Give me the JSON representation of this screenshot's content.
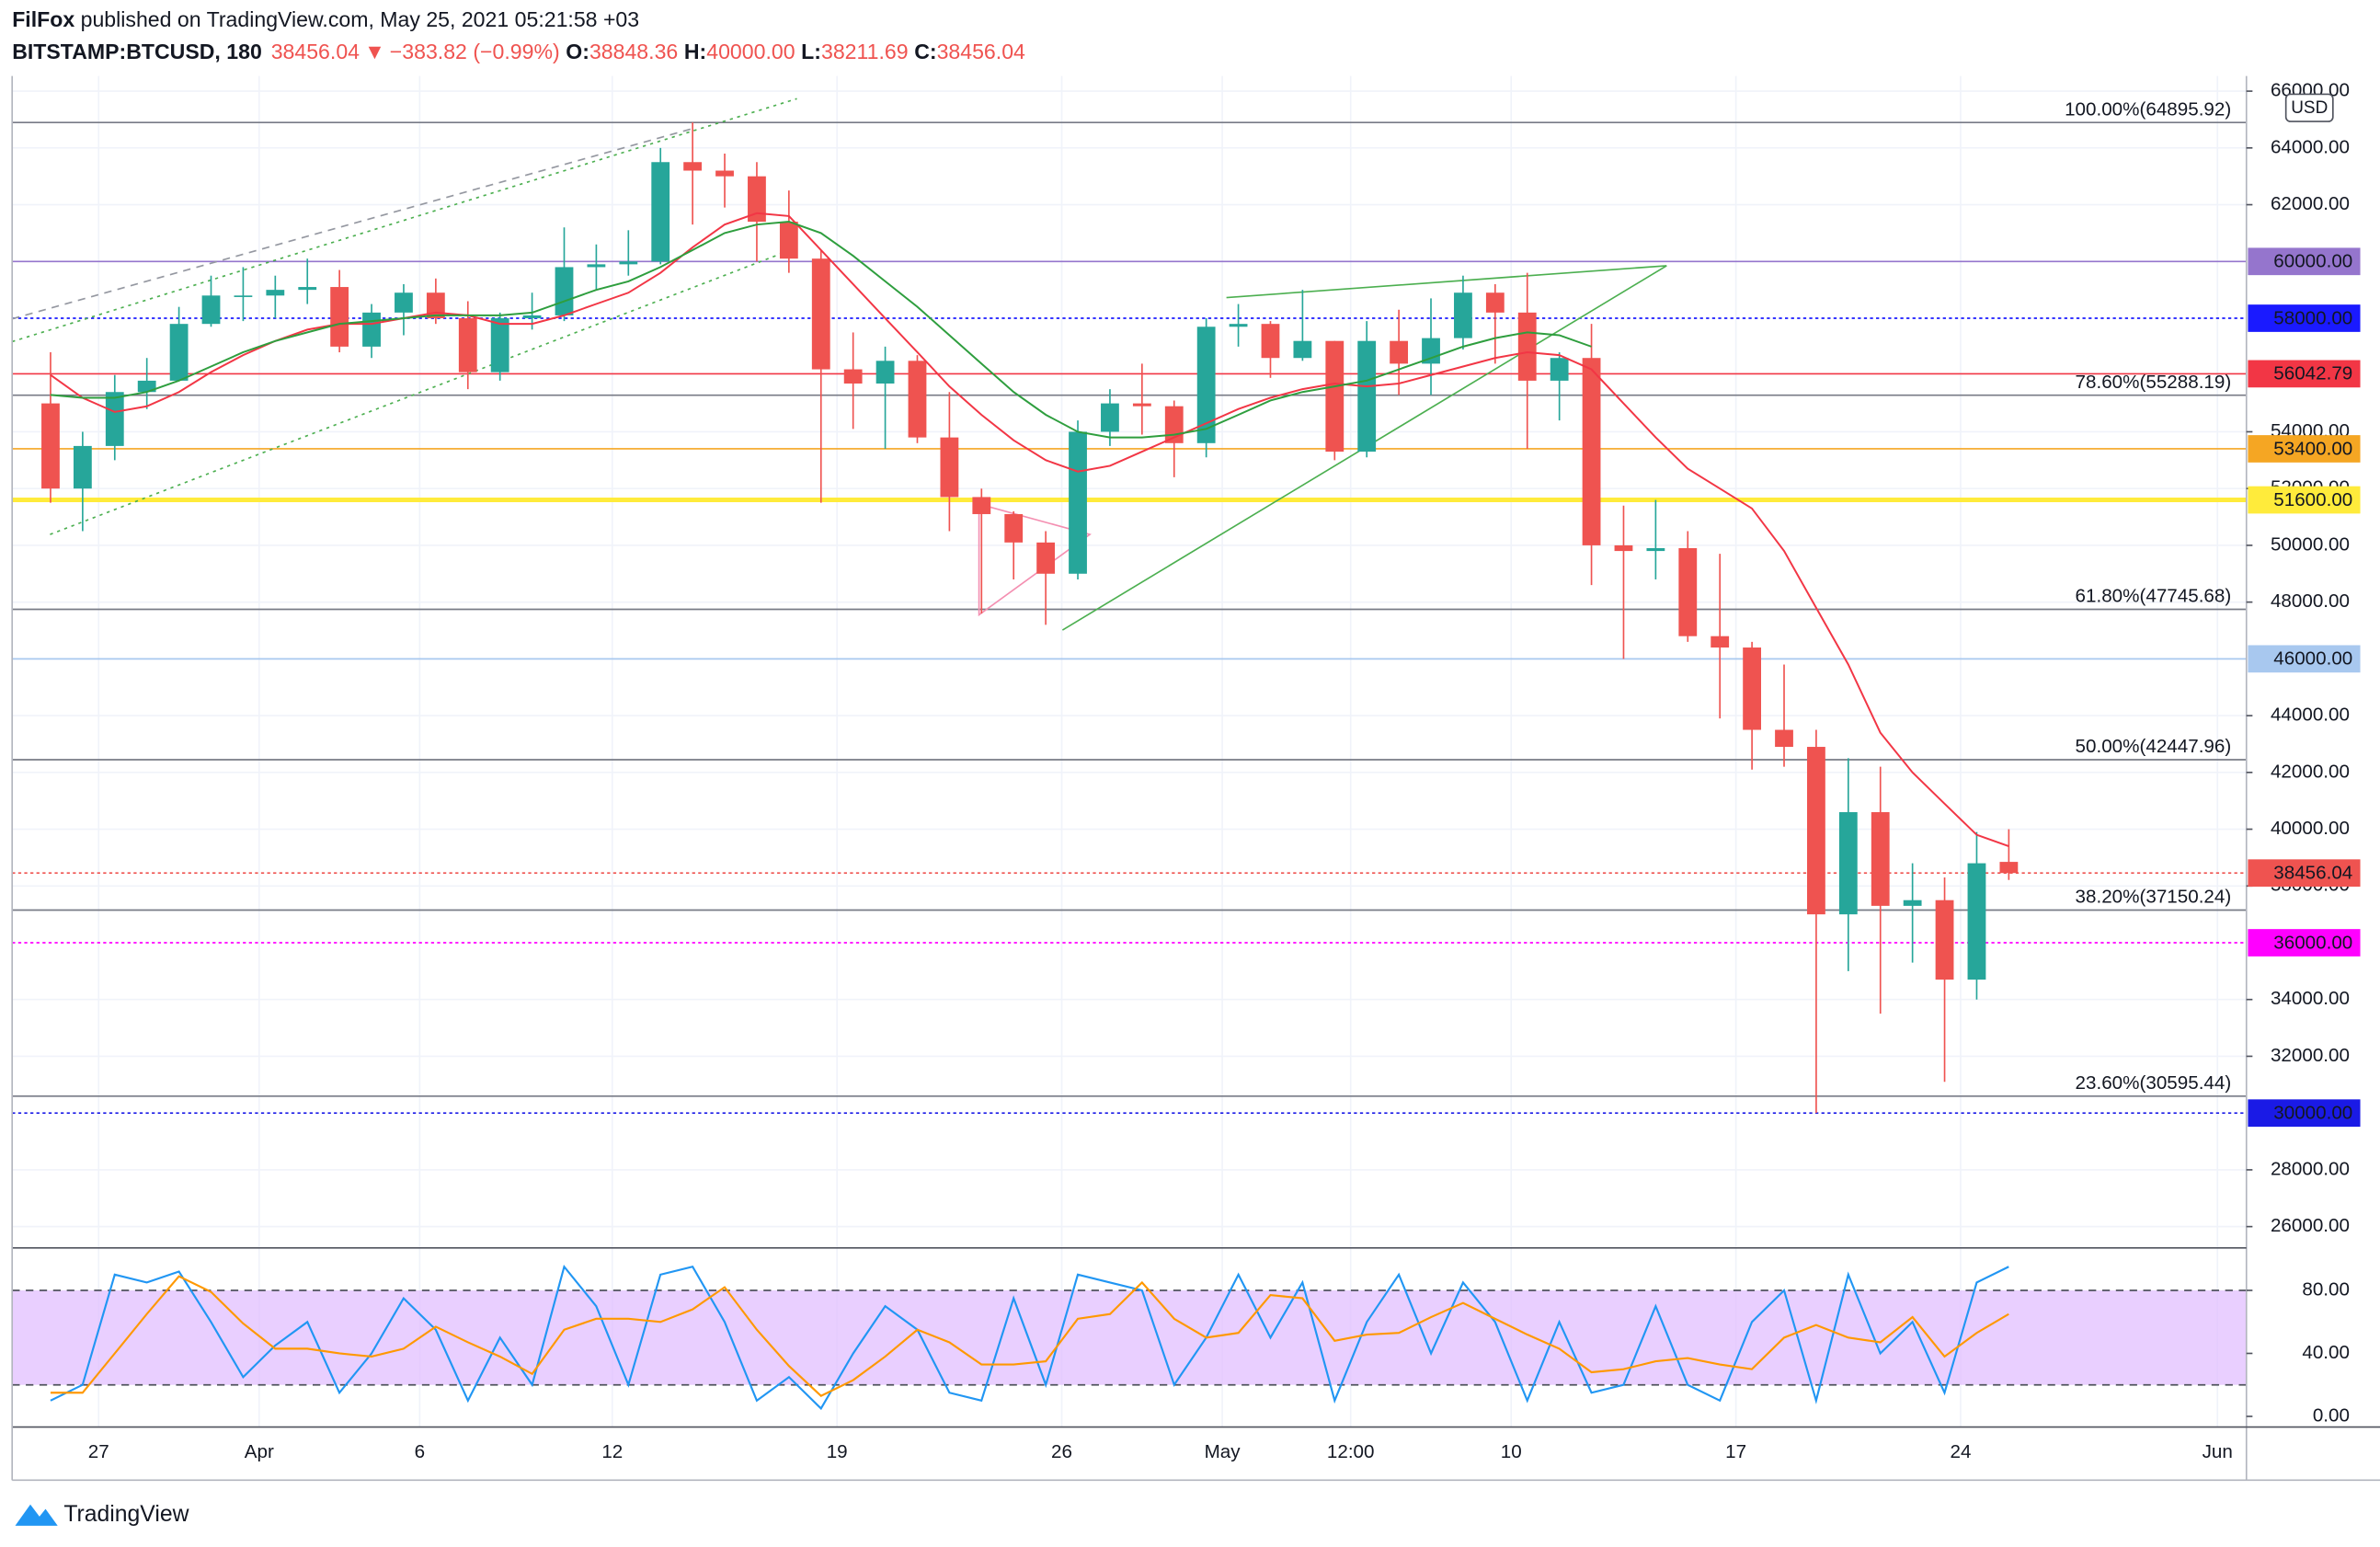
{
  "header": {
    "author": "FilFox",
    "published": " published on TradingView.com, May 25, 2021 05:21:58 +03",
    "symbol": "BITSTAMP:BTCUSD, 180",
    "last": "38456.04",
    "arrow": "▼",
    "change": "−383.82 (−0.99%)",
    "o_label": "O:",
    "o": "38848.36",
    "h_label": "H:",
    "h": "40000.00",
    "l_label": "L:",
    "l": "38211.69",
    "c_label": "C:",
    "c": "38456.04",
    "currency": "USD",
    "brand": "TradingView"
  },
  "chart_data": [
    {
      "type": "candlestick",
      "up_color": "#26a69a",
      "down_color": "#ef5350",
      "categories": [
        null,
        null,
        "27",
        null,
        null,
        null,
        null,
        "Apr",
        null,
        null,
        null,
        null,
        "6",
        null,
        null,
        null,
        null,
        null,
        "12",
        null,
        null,
        null,
        null,
        null,
        null,
        "19",
        null,
        null,
        null,
        null,
        null,
        null,
        "26",
        null,
        null,
        null,
        null,
        "May",
        null,
        null,
        null,
        "12:00",
        null,
        null,
        null,
        null,
        "10",
        null,
        null,
        null,
        null,
        null,
        null,
        "17",
        null,
        null,
        null,
        null,
        null,
        null,
        "24",
        null,
        null,
        null,
        null,
        null,
        null,
        null,
        "Jun"
      ],
      "open": [
        55000,
        52000,
        53500,
        55400,
        55800,
        57800,
        58800,
        58800,
        59000,
        59100,
        57000,
        58200,
        58900,
        58000,
        56100,
        58000,
        58100,
        59800,
        59900,
        60000,
        63500,
        63200,
        63000,
        61400,
        60100,
        56200,
        55700,
        56500,
        53800,
        51700,
        51100,
        50100,
        49000,
        54000,
        55000,
        54900,
        53600,
        57700,
        57800,
        56600,
        57200,
        53300,
        57200,
        56400,
        57300,
        58900,
        58200,
        55800,
        56600,
        50000,
        49800,
        49900,
        46800,
        46400,
        43500,
        42900,
        37000,
        40600,
        37300,
        37500,
        34700,
        38848.36,
        null,
        null,
        null,
        null,
        null,
        null,
        null
      ],
      "high": [
        56800,
        54000,
        56000,
        56600,
        58400,
        59500,
        59800,
        59500,
        60100,
        59700,
        58500,
        59200,
        59400,
        58600,
        58200,
        58900,
        61200,
        60600,
        61100,
        64000,
        64895.92,
        63800,
        63500,
        62500,
        60400,
        57500,
        57000,
        56700,
        55400,
        52000,
        51200,
        50500,
        54400,
        55500,
        56400,
        55100,
        58000,
        58500,
        57900,
        59000,
        57200,
        57900,
        58300,
        58700,
        59500,
        59200,
        59600,
        56800,
        57800,
        51400,
        51600,
        50500,
        49700,
        46600,
        45800,
        43500,
        42500,
        42200,
        38800,
        38300,
        39900,
        40000,
        null,
        null,
        null,
        null,
        null,
        null,
        null
      ],
      "low": [
        51500,
        50500,
        53000,
        54800,
        55800,
        57700,
        57900,
        58000,
        58500,
        56800,
        56600,
        57400,
        57800,
        55500,
        55800,
        57600,
        57900,
        59000,
        59500,
        59900,
        61300,
        61900,
        60000,
        59600,
        51500,
        54100,
        53400,
        53600,
        50500,
        47600,
        48800,
        47200,
        48800,
        53500,
        53900,
        52400,
        53100,
        57000,
        55900,
        56500,
        53000,
        53100,
        55300,
        55300,
        56900,
        56400,
        53400,
        54400,
        48600,
        46000,
        48800,
        46600,
        43900,
        42100,
        42200,
        30000,
        35000,
        33500,
        35300,
        31100,
        34000,
        38211.69,
        null,
        null,
        null,
        null,
        null,
        null,
        null
      ],
      "close": [
        52000,
        53500,
        55400,
        55800,
        57800,
        58800,
        58800,
        59000,
        59100,
        57000,
        58200,
        58900,
        58000,
        56100,
        58000,
        58100,
        59800,
        59900,
        60000,
        63500,
        63200,
        63000,
        61400,
        60100,
        56200,
        55700,
        56500,
        53800,
        51700,
        51100,
        50100,
        49000,
        54000,
        55000,
        54900,
        53600,
        57700,
        57800,
        56600,
        57200,
        53300,
        57200,
        56400,
        57300,
        58900,
        58200,
        55800,
        56600,
        50000,
        49800,
        49900,
        46800,
        46400,
        43500,
        42900,
        37000,
        40600,
        37300,
        37500,
        34700,
        38800,
        38456.04,
        null,
        null,
        null,
        null,
        null,
        null,
        null
      ],
      "series": [
        {
          "color": "#f23645",
          "values": [
            56000,
            55200,
            54700,
            54900,
            55400,
            56100,
            56700,
            57200,
            57600,
            57800,
            57800,
            58000,
            58200,
            58100,
            57800,
            57800,
            58100,
            58500,
            58900,
            59600,
            60500,
            61300,
            61700,
            61600,
            60400,
            59200,
            58000,
            56800,
            55600,
            54600,
            53700,
            53000,
            52600,
            52800,
            53300,
            53800,
            54300,
            54800,
            55200,
            55500,
            55700,
            55600,
            55700,
            56000,
            56300,
            56600,
            56800,
            56700,
            56200,
            55000,
            53800,
            52700,
            52000,
            51300,
            49800,
            47800,
            45800,
            43400,
            42000,
            40900,
            39800,
            39400,
            null,
            null,
            null,
            null,
            null,
            null,
            null
          ]
        },
        {
          "color": "#2e9e3e",
          "values": [
            55300,
            55200,
            55200,
            55400,
            55800,
            56300,
            56800,
            57200,
            57500,
            57800,
            57900,
            58000,
            58100,
            58100,
            58100,
            58200,
            58600,
            59000,
            59300,
            59800,
            60400,
            61000,
            61300,
            61400,
            61000,
            60200,
            59300,
            58400,
            57400,
            56400,
            55400,
            54600,
            54000,
            53800,
            53800,
            53900,
            54100,
            54600,
            55100,
            55400,
            55600,
            55800,
            56200,
            56600,
            57000,
            57300,
            57500,
            57400,
            57000,
            null,
            null,
            null,
            null,
            null,
            null,
            null,
            null,
            null,
            null,
            null,
            null,
            null,
            null,
            null,
            null,
            null,
            null,
            null,
            null
          ]
        }
      ],
      "ylim": [
        25250,
        66535
      ],
      "yticks": [
        {
          "value": 26000,
          "label": "26000.00"
        },
        {
          "value": 28000,
          "label": "28000.00"
        },
        {
          "value": 32000,
          "label": "32000.00"
        },
        {
          "value": 34000,
          "label": "34000.00"
        },
        {
          "value": 38000,
          "label": "38000.00"
        },
        {
          "value": 40000,
          "label": "40000.00"
        },
        {
          "value": 42000,
          "label": "42000.00"
        },
        {
          "value": 44000,
          "label": "44000.00"
        },
        {
          "value": 48000,
          "label": "48000.00"
        },
        {
          "value": 50000,
          "label": "50000.00"
        },
        {
          "value": 52000,
          "label": "52000.00"
        },
        {
          "value": 54000,
          "label": "54000.00"
        },
        {
          "value": 62000,
          "label": "62000.00"
        },
        {
          "value": 64000,
          "label": "64000.00"
        },
        {
          "value": 66000,
          "label": "66000.00"
        }
      ],
      "grid": true,
      "fib_color": "#787b86",
      "fib_levels": [
        {
          "value": 64895.92,
          "label": "100.00%(64895.92)"
        },
        {
          "value": 55288.19,
          "label": "78.60%(55288.19)"
        },
        {
          "value": 47745.68,
          "label": "61.80%(47745.68)"
        },
        {
          "value": 42447.96,
          "label": "50.00%(42447.96)"
        },
        {
          "value": 37150.24,
          "label": "38.20%(37150.24)"
        },
        {
          "value": 30595.44,
          "label": "23.60%(30595.44)"
        }
      ],
      "levels": [
        {
          "value": 60000,
          "label": "60000.00",
          "color": "#9575cd",
          "text_color": "#131722",
          "style": "solid"
        },
        {
          "value": 58000,
          "label": "58000.00",
          "color": "#1a1aff",
          "text_color": "#ffffff",
          "style": "dotted"
        },
        {
          "value": 56042.79,
          "label": "56042.79",
          "color": "#f23645",
          "text_color": "#ffffff",
          "style": "solid"
        },
        {
          "value": 53400,
          "label": "53400.00",
          "color": "#f5a623",
          "text_color": "#131722",
          "style": "solid"
        },
        {
          "value": 51600,
          "label": "51600.00",
          "color": "#ffeb3b",
          "text_color": "#131722",
          "style": "thick"
        },
        {
          "value": 46000,
          "label": "46000.00",
          "color": "#a8c8ef",
          "text_color": "#131722",
          "style": "solid"
        },
        {
          "value": 38456.04,
          "label": "38456.04",
          "color": "#ef5350",
          "text_color": "#ffffff",
          "style": "dotted"
        },
        {
          "value": 36000,
          "label": "36000.00",
          "color": "#ff00ff",
          "text_color": "#ffffff",
          "style": "dotted"
        },
        {
          "value": 30000,
          "label": "30000.00",
          "color": "#1a1ae6",
          "text_color": "#ffffff",
          "style": "dotted"
        }
      ]
    },
    {
      "type": "line",
      "series": [
        {
          "color": "#2196f3",
          "values": [
            10,
            20,
            90,
            85,
            92,
            60,
            25,
            45,
            60,
            15,
            40,
            75,
            55,
            10,
            50,
            20,
            95,
            70,
            20,
            90,
            95,
            60,
            10,
            25,
            5,
            40,
            70,
            55,
            15,
            10,
            75,
            20,
            90,
            85,
            80,
            20,
            50,
            90,
            50,
            85,
            10,
            60,
            90,
            40,
            85,
            60,
            10,
            60,
            15,
            20,
            70,
            20,
            10,
            60,
            80,
            10,
            90,
            40,
            60,
            15,
            85,
            95,
            null,
            null,
            null,
            null,
            null,
            null,
            null
          ]
        },
        {
          "color": "#ff9800",
          "values": [
            15,
            15,
            40,
            65,
            89,
            79,
            59,
            43,
            43,
            40,
            38,
            43,
            57,
            47,
            38,
            27,
            55,
            62,
            62,
            60,
            68,
            82,
            55,
            32,
            13,
            23,
            38,
            55,
            47,
            33,
            33,
            35,
            62,
            65,
            85,
            62,
            50,
            53,
            77,
            75,
            48,
            52,
            53,
            63,
            72,
            62,
            52,
            43,
            28,
            30,
            35,
            37,
            33,
            30,
            50,
            58,
            50,
            47,
            63,
            38,
            53,
            65,
            null,
            null,
            null,
            null,
            null,
            null,
            null
          ]
        }
      ],
      "band": [
        20,
        80
      ],
      "band_color": "#e1bfff",
      "ylim": [
        -6.75,
        104.1
      ],
      "yticks": [
        {
          "value": 0,
          "label": "0.00"
        },
        {
          "value": 40,
          "label": "40.00"
        },
        {
          "value": 80,
          "label": "80.00"
        }
      ]
    }
  ]
}
